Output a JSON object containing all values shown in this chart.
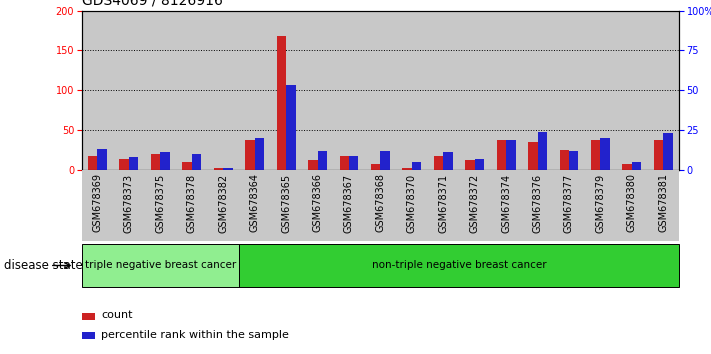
{
  "title": "GDS4069 / 8126916",
  "samples": [
    "GSM678369",
    "GSM678373",
    "GSM678375",
    "GSM678378",
    "GSM678382",
    "GSM678364",
    "GSM678365",
    "GSM678366",
    "GSM678367",
    "GSM678368",
    "GSM678370",
    "GSM678371",
    "GSM678372",
    "GSM678374",
    "GSM678376",
    "GSM678377",
    "GSM678379",
    "GSM678380",
    "GSM678381"
  ],
  "count": [
    18,
    14,
    20,
    10,
    2,
    38,
    168,
    12,
    17,
    8,
    3,
    17,
    12,
    37,
    35,
    25,
    38,
    8,
    37
  ],
  "percentile": [
    13,
    8,
    11,
    10,
    1,
    20,
    53,
    12,
    9,
    12,
    5,
    11,
    7,
    19,
    24,
    12,
    20,
    5,
    23
  ],
  "disease_groups": [
    {
      "label": "triple negative breast cancer",
      "start": 0,
      "end": 5,
      "color": "#90ee90"
    },
    {
      "label": "non-triple negative breast cancer",
      "start": 5,
      "end": 19,
      "color": "#32cd32"
    }
  ],
  "count_color": "#cc2222",
  "percentile_color": "#2222cc",
  "left_ylim": [
    0,
    200
  ],
  "right_ylim": [
    0,
    100
  ],
  "left_yticks": [
    0,
    50,
    100,
    150,
    200
  ],
  "right_yticks": [
    0,
    25,
    50,
    75,
    100
  ],
  "right_yticklabels": [
    "0",
    "25",
    "50",
    "75",
    "100%"
  ],
  "title_fontsize": 10,
  "tick_fontsize": 7,
  "legend_fontsize": 8,
  "disease_label_fontsize": 7.5,
  "disease_state_fontsize": 8.5,
  "sample_bg_color": "#c8c8c8"
}
